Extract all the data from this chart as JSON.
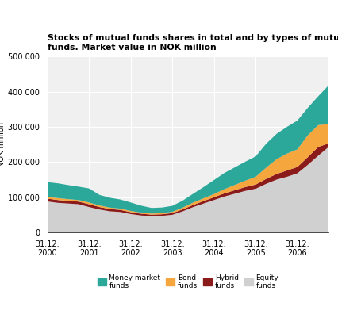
{
  "title": "Stocks of mutual funds shares in total and by types of mutual\nfunds. Market value in NOK million",
  "ylabel": "NOK million",
  "colors": {
    "money_market": "#2ba89a",
    "bond": "#f5a63d",
    "hybrid": "#8b1a1a",
    "equity": "#d0d0d0"
  },
  "legend_labels": [
    "Money market\nfunds",
    "Bond\nfunds",
    "Hybrid\nfunds",
    "Equity\nfunds"
  ],
  "x_tick_labels": [
    "31.12.\n2000",
    "31.12.\n2001",
    "31.12.\n2002",
    "31.12.\n2003",
    "31.12.\n2004",
    "31.12.\n2005",
    "31.12.\n2006"
  ],
  "ylim": [
    0,
    500000
  ],
  "yticks": [
    0,
    100000,
    200000,
    300000,
    400000,
    500000
  ],
  "ytick_labels": [
    "0",
    "100 000",
    "200 000",
    "300 000",
    "400 000",
    "500 000"
  ],
  "data": {
    "x": [
      2000.0,
      2000.25,
      2000.5,
      2000.75,
      2001.0,
      2001.25,
      2001.5,
      2001.75,
      2002.0,
      2002.25,
      2002.5,
      2002.75,
      2003.0,
      2003.25,
      2003.5,
      2003.75,
      2004.0,
      2004.25,
      2004.5,
      2004.75,
      2005.0,
      2005.25,
      2005.5,
      2005.75,
      2006.0,
      2006.25,
      2006.5,
      2006.75
    ],
    "equity": [
      88000,
      84000,
      82000,
      80000,
      72000,
      65000,
      60000,
      58000,
      52000,
      48000,
      46000,
      47000,
      50000,
      60000,
      72000,
      82000,
      92000,
      102000,
      110000,
      118000,
      124000,
      138000,
      150000,
      158000,
      168000,
      192000,
      218000,
      243000
    ],
    "hybrid": [
      8000,
      8000,
      7500,
      7500,
      8000,
      7000,
      6500,
      6000,
      5500,
      5000,
      4500,
      4500,
      5000,
      5500,
      6000,
      7000,
      8000,
      9000,
      10000,
      11000,
      12000,
      14000,
      16000,
      18000,
      18000,
      22000,
      25000,
      10000
    ],
    "bond": [
      5000,
      5500,
      5000,
      4500,
      5000,
      4500,
      4000,
      3500,
      3500,
      3000,
      3000,
      3200,
      3500,
      5000,
      7000,
      8000,
      9000,
      12000,
      15000,
      18000,
      22000,
      32000,
      42000,
      48000,
      50000,
      62000,
      62000,
      55000
    ],
    "money_market": [
      42000,
      42000,
      40000,
      38000,
      40000,
      30000,
      28000,
      26000,
      24000,
      20000,
      16000,
      16000,
      17000,
      20000,
      25000,
      32000,
      40000,
      46000,
      50000,
      54000,
      58000,
      68000,
      72000,
      76000,
      82000,
      78000,
      82000,
      110000
    ]
  }
}
